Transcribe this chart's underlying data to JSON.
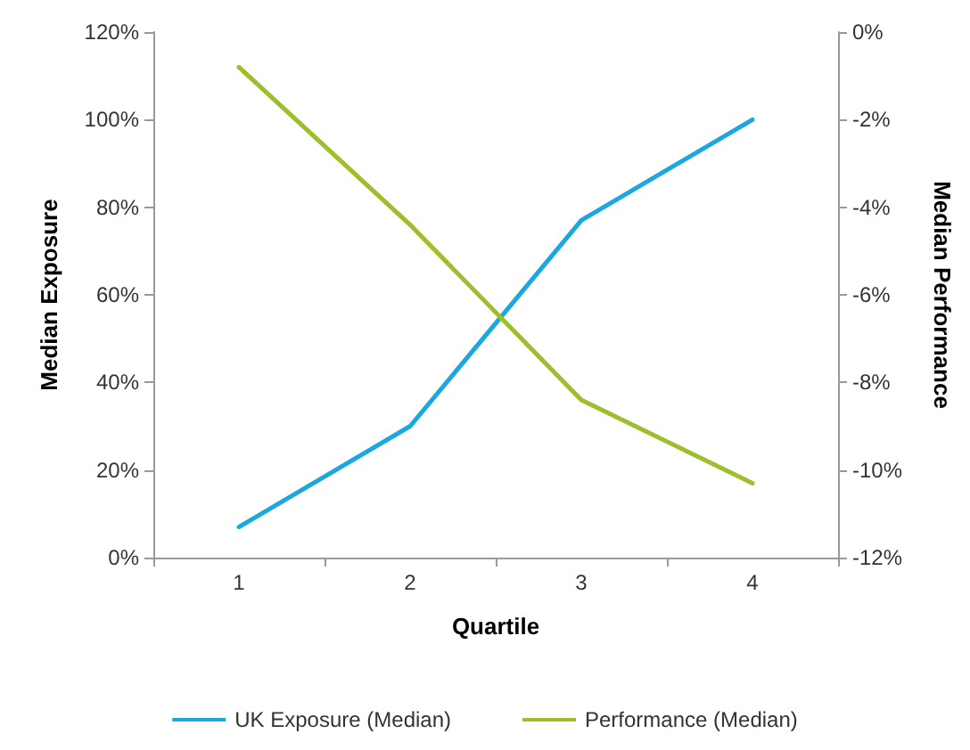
{
  "chart_data": {
    "type": "line",
    "xlabel": "Quartile",
    "ylabel": "Median Exposure",
    "y2label": "Median Performance",
    "categories": [
      "1",
      "2",
      "3",
      "4"
    ],
    "series": [
      {
        "name": "UK Exposure (Median)",
        "color": "#1ba8e0",
        "values": [
          7,
          30,
          77,
          100
        ]
      },
      {
        "name": "Performance (Median)",
        "color": "#9cbf2b",
        "values": [
          -0.8,
          -4.4,
          -8.4,
          -10.3
        ],
        "axis": "y2"
      }
    ],
    "ylim": [
      0,
      120
    ],
    "yticks": [
      {
        "value": 0,
        "label": "0%"
      },
      {
        "value": 20,
        "label": "20%"
      },
      {
        "value": 40,
        "label": "40%"
      },
      {
        "value": 60,
        "label": "60%"
      },
      {
        "value": 80,
        "label": "80%"
      },
      {
        "value": 100,
        "label": "100%"
      },
      {
        "value": 120,
        "label": "120%"
      }
    ],
    "y2lim": [
      -12,
      0
    ],
    "y2ticks": [
      {
        "value": -12,
        "label": "-12%"
      },
      {
        "value": -10,
        "label": "-10%"
      },
      {
        "value": -8,
        "label": "-8%"
      },
      {
        "value": -6,
        "label": "-6%"
      },
      {
        "value": -4,
        "label": "-4%"
      },
      {
        "value": -2,
        "label": "-2%"
      },
      {
        "value": 0,
        "label": "0%"
      }
    ],
    "grid": false,
    "legend": "bottom",
    "marker": "none",
    "line_style": "solid"
  }
}
